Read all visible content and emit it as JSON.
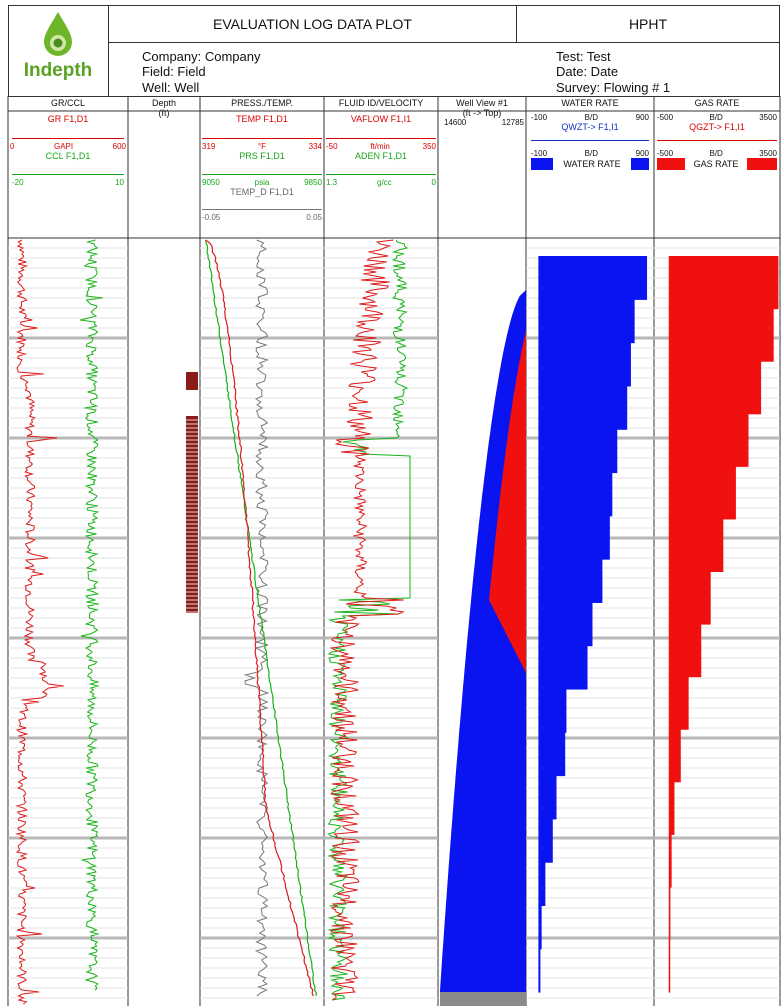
{
  "header": {
    "logo_text": "Indepth",
    "title": "EVALUATION LOG DATA PLOT",
    "hpht": "HPHT",
    "company": "Company: Company",
    "field": "Field: Field",
    "well": "Well: Well",
    "test": "Test: Test",
    "date": "Date: Date",
    "survey": "Survey: Flowing # 1"
  },
  "colors": {
    "gr": "#dd1a1a",
    "ccl": "#17b317",
    "temp_d": "#777777",
    "water": "#0a14f0",
    "gas": "#f01010",
    "depth_marks": "#8b1a1a"
  },
  "tracks": {
    "gr_ccl": {
      "title": "GR/CCL",
      "gr_name": "GR  F1,D1",
      "gr_min": "0",
      "gr_unit": "GAPI",
      "gr_max": "600",
      "ccl_name": "CCL  F1,D1",
      "ccl_min": "-20",
      "ccl_max": "10"
    },
    "depth": {
      "title": "Depth",
      "unit": "(ft)"
    },
    "press_temp": {
      "title": "PRESS./TEMP.",
      "temp_name": "TEMP  F1,D1",
      "temp_min": "319",
      "temp_unit": "°F",
      "temp_max": "334",
      "prs_name": "PRS  F1,D1",
      "prs_min": "9050",
      "prs_unit": "psia",
      "prs_max": "9850",
      "tempd_name": "TEMP_D  F1,D1",
      "tempd_min": "-0.05",
      "tempd_max": "0.05"
    },
    "fluid": {
      "title": "FLUID ID/VELOCITY",
      "vaflow_name": "VAFLOW  F1,I1",
      "vaflow_min": "-50",
      "vaflow_unit": "ft/min",
      "vaflow_max": "350",
      "aden_name": "ADEN  F1,D1",
      "aden_min": "1.3",
      "aden_unit": "g/cc",
      "aden_max": "0"
    },
    "wellview": {
      "title": "Well View #1",
      "sub": "(ft -> Top)",
      "left": "14600",
      "right": "12785"
    },
    "water_rate": {
      "title": "WATER RATE",
      "min": "-100",
      "unit": "B/D",
      "max": "900",
      "curve": "QWZT->  F1,I1",
      "min2": "-100",
      "unit2": "B/D",
      "max2": "900",
      "legend": "WATER RATE"
    },
    "gas_rate": {
      "title": "GAS RATE",
      "min": "-500",
      "unit": "B/D",
      "max": "3500",
      "curve": "QGZT->  F1,I1",
      "min2": "-500",
      "unit2": "B/D",
      "max2": "3500",
      "legend": "GAS RATE"
    }
  },
  "chart_data": {
    "type": "line",
    "water_rate_steps": [
      {
        "rate": 860,
        "segment": 1
      },
      {
        "rate": 760,
        "segment": 2
      },
      {
        "rate": 730,
        "segment": 3
      },
      {
        "rate": 700,
        "segment": 4
      },
      {
        "rate": 620,
        "segment": 5
      },
      {
        "rate": 580,
        "segment": 6
      },
      {
        "rate": 560,
        "segment": 7
      },
      {
        "rate": 500,
        "segment": 8
      },
      {
        "rate": 420,
        "segment": 9
      },
      {
        "rate": 380,
        "segment": 10
      },
      {
        "rate": 210,
        "segment": 11
      },
      {
        "rate": 200,
        "segment": 12
      },
      {
        "rate": 130,
        "segment": 13
      },
      {
        "rate": 100,
        "segment": 14
      },
      {
        "rate": 40,
        "segment": 15
      },
      {
        "rate": 10,
        "segment": 16
      },
      {
        "rate": 0,
        "segment": 17
      }
    ],
    "gas_rate_steps": [
      {
        "rate": 3450,
        "segment": 1
      },
      {
        "rate": 3300,
        "segment": 2
      },
      {
        "rate": 2900,
        "segment": 3
      },
      {
        "rate": 2500,
        "segment": 4
      },
      {
        "rate": 2100,
        "segment": 5
      },
      {
        "rate": 1700,
        "segment": 6
      },
      {
        "rate": 1300,
        "segment": 7
      },
      {
        "rate": 1000,
        "segment": 8
      },
      {
        "rate": 600,
        "segment": 9
      },
      {
        "rate": 350,
        "segment": 10
      },
      {
        "rate": 150,
        "segment": 11
      },
      {
        "rate": 60,
        "segment": 12
      },
      {
        "rate": 20,
        "segment": 13
      },
      {
        "rate": 0,
        "segment": 14
      }
    ],
    "temp_range": [
      319,
      334
    ],
    "prs_range": [
      9050,
      9850
    ],
    "aden_range": [
      1.3,
      0
    ],
    "vaflow_range": [
      -50,
      350
    ],
    "gr_range": [
      0,
      600
    ],
    "ccl_range": [
      -20,
      10
    ]
  }
}
